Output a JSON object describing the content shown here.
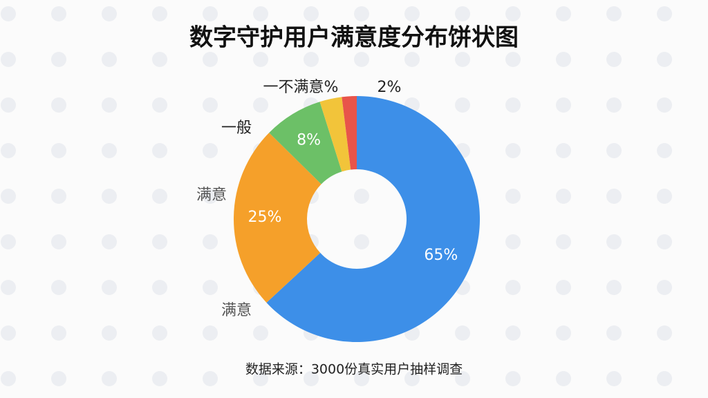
{
  "chart_data": {
    "type": "pie",
    "title": "数字守护用户满意度分布饼状图",
    "source": "数据来源：3000份真实用户抽样调查",
    "values": [
      65,
      25,
      8,
      3,
      2
    ],
    "value_labels": [
      "65%",
      "25%",
      "8%",
      null,
      "2%"
    ],
    "colors": [
      "#3d8fe8",
      "#f5a02a",
      "#6cc067",
      "#f2c43a",
      "#e8544a"
    ],
    "annotations": [
      "一不满意%",
      "一般",
      "满意",
      "满意"
    ]
  }
}
